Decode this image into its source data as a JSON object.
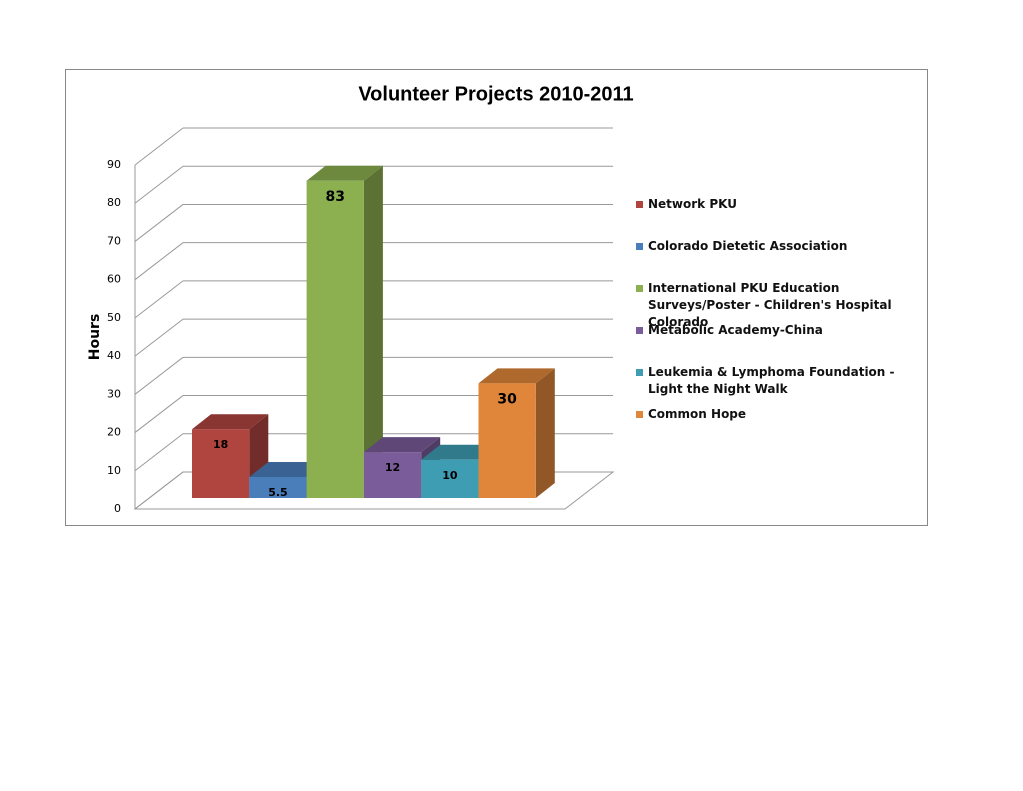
{
  "chart_data": {
    "type": "bar3d",
    "title": "Volunteer Projects 2010-2011",
    "y_label": "Hours",
    "categories": [
      null
    ],
    "series": [
      {
        "name": "Network PKU",
        "color": "#b0443f",
        "values": [
          18
        ]
      },
      {
        "name": "Colorado Dietetic Association",
        "color": "#4a7ebb",
        "values": [
          5.5
        ]
      },
      {
        "name": "International PKU Education Surveys/Poster - Children's Hospital Colorado",
        "color": "#8cb050",
        "values": [
          83
        ]
      },
      {
        "name": "Metabolic Academy-China",
        "color": "#7a5c9a",
        "values": [
          12
        ]
      },
      {
        "name": "Leukemia & Lymphoma Foundation - Light the Night Walk",
        "color": "#3e9db3",
        "values": [
          10
        ]
      },
      {
        "name": "Common Hope",
        "color": "#e0863a",
        "values": [
          30
        ]
      }
    ],
    "ylim": [
      0,
      90
    ],
    "yticks": [
      0,
      10,
      20,
      30,
      40,
      50,
      60,
      70,
      80,
      90
    ],
    "grid": true,
    "legend": "right"
  }
}
